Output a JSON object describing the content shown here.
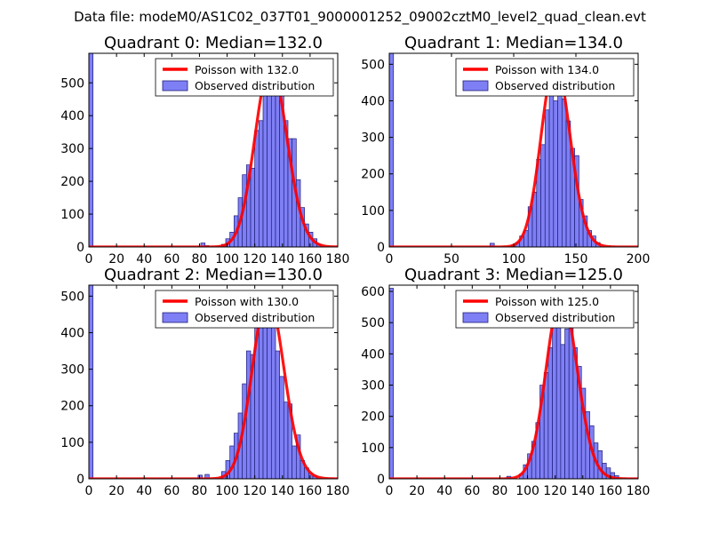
{
  "figure_title": "Data file: modeM0/AS1C02_037T01_9000001252_09002cztM0_level2_quad_clean.evt",
  "colors": {
    "poisson_line": "#ff0000",
    "bar_fill": "#7f7ff5",
    "bar_edge": "#1f1f7a",
    "axis": "#000000"
  },
  "chart_data": [
    {
      "type": "bar",
      "title": "Quadrant 0: Median=132.0",
      "xlabel": "",
      "ylabel": "",
      "xlim": [
        0,
        180
      ],
      "ylim": [
        0,
        590
      ],
      "xticks": [
        0,
        20,
        40,
        60,
        80,
        100,
        120,
        140,
        160,
        180
      ],
      "yticks": [
        0,
        100,
        200,
        300,
        400,
        500
      ],
      "bin_width": 3,
      "bins": [
        [
          0,
          590
        ],
        [
          81,
          12
        ],
        [
          84,
          4
        ],
        [
          96,
          8
        ],
        [
          99,
          25
        ],
        [
          102,
          45
        ],
        [
          105,
          95
        ],
        [
          108,
          150
        ],
        [
          111,
          220
        ],
        [
          114,
          250
        ],
        [
          117,
          240
        ],
        [
          120,
          355
        ],
        [
          123,
          385
        ],
        [
          126,
          510
        ],
        [
          129,
          555
        ],
        [
          132,
          545
        ],
        [
          135,
          470
        ],
        [
          138,
          475
        ],
        [
          141,
          385
        ],
        [
          144,
          330
        ],
        [
          147,
          330
        ],
        [
          150,
          205
        ],
        [
          153,
          120
        ],
        [
          156,
          70
        ],
        [
          159,
          45
        ],
        [
          162,
          25
        ],
        [
          165,
          8
        ]
      ],
      "poisson_mean": 132.0,
      "poisson_peak": 555,
      "legend": [
        "Poisson with 132.0",
        "Observed distribution"
      ],
      "legend_position": "top-right"
    },
    {
      "type": "bar",
      "title": "Quadrant 1: Median=134.0",
      "xlabel": "",
      "ylabel": "",
      "xlim": [
        0,
        200
      ],
      "ylim": [
        0,
        530
      ],
      "xticks": [
        0,
        50,
        100,
        150,
        200
      ],
      "yticks": [
        0,
        100,
        200,
        300,
        400,
        500
      ],
      "bin_width": 3.4,
      "bins": [
        [
          0,
          530
        ],
        [
          81,
          10
        ],
        [
          98,
          4
        ],
        [
          101.4,
          12
        ],
        [
          104.8,
          30
        ],
        [
          108.2,
          45
        ],
        [
          111.6,
          110
        ],
        [
          115,
          150
        ],
        [
          118.4,
          240
        ],
        [
          121.8,
          280
        ],
        [
          125.2,
          375
        ],
        [
          128.6,
          470
        ],
        [
          132,
          400
        ],
        [
          135.4,
          500
        ],
        [
          138.8,
          405
        ],
        [
          142.2,
          345
        ],
        [
          145.6,
          270
        ],
        [
          149,
          250
        ],
        [
          152.4,
          130
        ],
        [
          155.8,
          85
        ],
        [
          159.2,
          45
        ],
        [
          162.6,
          30
        ],
        [
          166,
          12
        ]
      ],
      "poisson_mean": 134.0,
      "poisson_peak": 505,
      "legend": [
        "Poisson with 134.0",
        "Observed distribution"
      ],
      "legend_position": "top-right"
    },
    {
      "type": "bar",
      "title": "Quadrant 2: Median=130.0",
      "xlabel": "",
      "ylabel": "",
      "xlim": [
        0,
        180
      ],
      "ylim": [
        0,
        530
      ],
      "xticks": [
        0,
        20,
        40,
        60,
        80,
        100,
        120,
        140,
        160,
        180
      ],
      "yticks": [
        0,
        100,
        200,
        300,
        400,
        500
      ],
      "bin_width": 3,
      "bins": [
        [
          0,
          530
        ],
        [
          79,
          10
        ],
        [
          84,
          12
        ],
        [
          96,
          20
        ],
        [
          99,
          50
        ],
        [
          102,
          90
        ],
        [
          105,
          125
        ],
        [
          108,
          180
        ],
        [
          111,
          260
        ],
        [
          114,
          350
        ],
        [
          117,
          340
        ],
        [
          120,
          430
        ],
        [
          123,
          470
        ],
        [
          126,
          490
        ],
        [
          129,
          500
        ],
        [
          132,
          455
        ],
        [
          135,
          350
        ],
        [
          138,
          280
        ],
        [
          141,
          210
        ],
        [
          144,
          205
        ],
        [
          147,
          90
        ],
        [
          150,
          120
        ],
        [
          153,
          50
        ],
        [
          156,
          30
        ],
        [
          159,
          15
        ],
        [
          162,
          8
        ]
      ],
      "poisson_mean": 130.0,
      "poisson_peak": 500,
      "legend": [
        "Poisson with 130.0",
        "Observed distribution"
      ],
      "legend_position": "top-right"
    },
    {
      "type": "bar",
      "title": "Quadrant 3: Median=125.0",
      "xlabel": "",
      "ylabel": "",
      "xlim": [
        0,
        180
      ],
      "ylim": [
        0,
        620
      ],
      "xticks": [
        0,
        20,
        40,
        60,
        80,
        100,
        120,
        140,
        160,
        180
      ],
      "yticks": [
        0,
        100,
        200,
        300,
        400,
        500,
        600
      ],
      "bin_width": 3,
      "bins": [
        [
          0,
          610
        ],
        [
          85,
          8
        ],
        [
          94,
          15
        ],
        [
          97,
          45
        ],
        [
          100,
          80
        ],
        [
          103,
          120
        ],
        [
          106,
          180
        ],
        [
          109,
          300
        ],
        [
          112,
          340
        ],
        [
          115,
          420
        ],
        [
          118,
          550
        ],
        [
          121,
          580
        ],
        [
          124,
          430
        ],
        [
          127,
          480
        ],
        [
          130,
          570
        ],
        [
          133,
          420
        ],
        [
          136,
          360
        ],
        [
          139,
          290
        ],
        [
          142,
          215
        ],
        [
          145,
          170
        ],
        [
          148,
          115
        ],
        [
          151,
          90
        ],
        [
          154,
          50
        ],
        [
          157,
          35
        ],
        [
          160,
          20
        ],
        [
          163,
          10
        ]
      ],
      "poisson_mean": 125.0,
      "poisson_peak": 585,
      "legend": [
        "Poisson with 125.0",
        "Observed distribution"
      ],
      "legend_position": "top-right"
    }
  ]
}
